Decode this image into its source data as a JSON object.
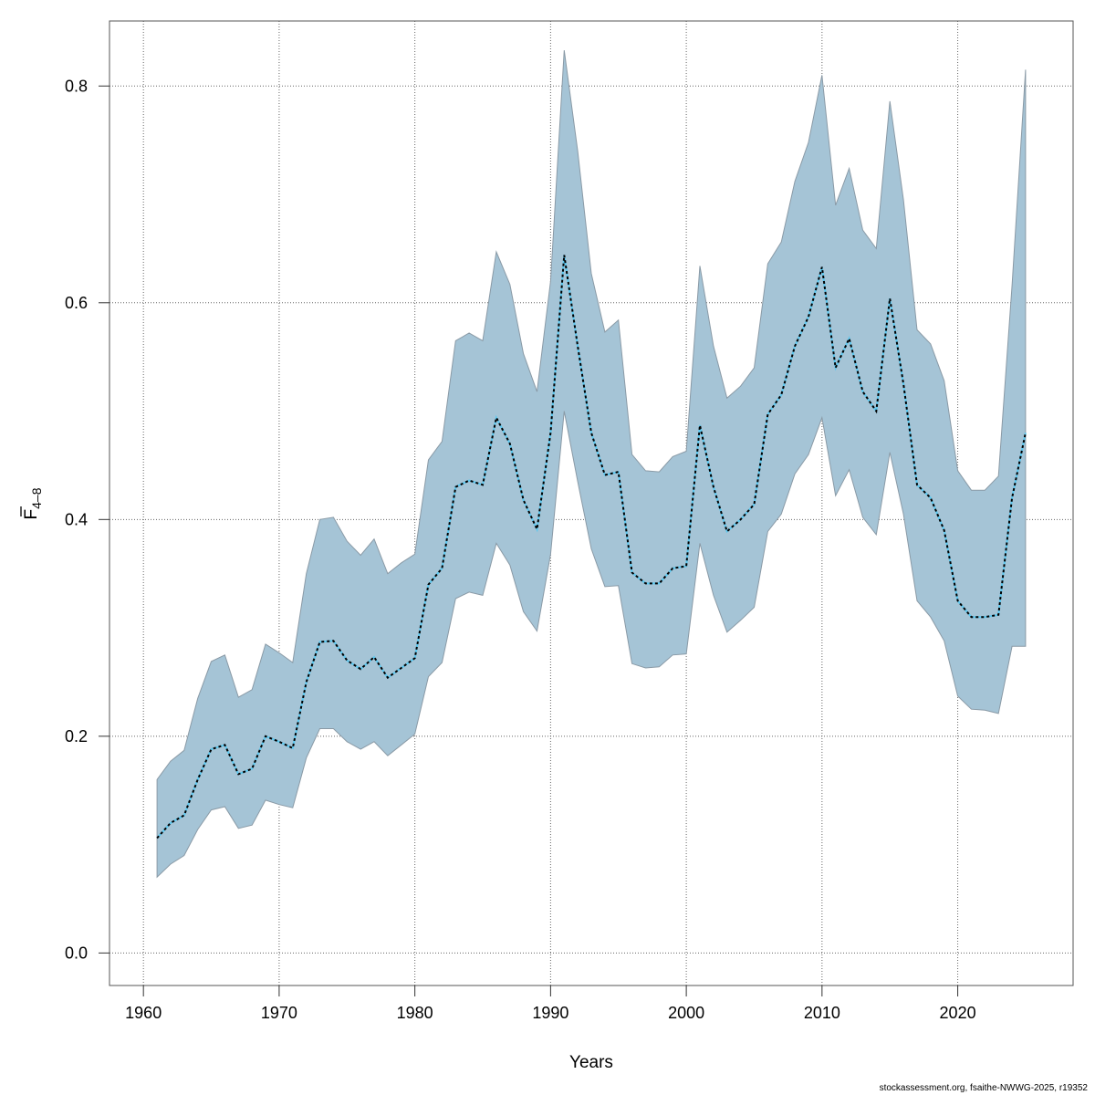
{
  "chart_data": {
    "type": "area",
    "title": "",
    "xlabel": "Years",
    "ylabel_main": "F",
    "ylabel_sub": "4-8",
    "ylabel_overbar": true,
    "xlim": [
      1957.5,
      2028.5
    ],
    "ylim": [
      -0.03,
      0.86
    ],
    "x_ticks": [
      1960,
      1970,
      1980,
      1990,
      2000,
      2010,
      2020
    ],
    "y_ticks": [
      0.0,
      0.2,
      0.4,
      0.6,
      0.8
    ],
    "y_tick_labels": [
      "0.0",
      "0.2",
      "0.4",
      "0.6",
      "0.8"
    ],
    "grid": true,
    "legend": "none",
    "colors": {
      "band": "#a5c4d6",
      "band_edge": "#8a9aa6",
      "line": "#000000",
      "line_under": "#5bc8f0"
    },
    "x": [
      1961,
      1962,
      1963,
      1964,
      1965,
      1966,
      1967,
      1968,
      1969,
      1970,
      1971,
      1972,
      1973,
      1974,
      1975,
      1976,
      1977,
      1978,
      1979,
      1980,
      1981,
      1982,
      1983,
      1984,
      1985,
      1986,
      1987,
      1988,
      1989,
      1990,
      1991,
      1992,
      1993,
      1994,
      1995,
      1996,
      1997,
      1998,
      1999,
      2000,
      2001,
      2002,
      2003,
      2004,
      2005,
      2006,
      2007,
      2008,
      2009,
      2010,
      2011,
      2012,
      2013,
      2014,
      2015,
      2016,
      2017,
      2018,
      2019,
      2020,
      2021,
      2022,
      2023,
      2024,
      2025
    ],
    "series": [
      {
        "name": "F estimate",
        "values": [
          0.106,
          0.12,
          0.127,
          0.16,
          0.188,
          0.192,
          0.165,
          0.17,
          0.2,
          0.195,
          0.189,
          0.25,
          0.287,
          0.288,
          0.27,
          0.262,
          0.273,
          0.254,
          0.263,
          0.272,
          0.34,
          0.355,
          0.43,
          0.436,
          0.432,
          0.494,
          0.47,
          0.418,
          0.391,
          0.48,
          0.644,
          0.56,
          0.48,
          0.441,
          0.444,
          0.351,
          0.341,
          0.341,
          0.355,
          0.357,
          0.487,
          0.43,
          0.389,
          0.4,
          0.414,
          0.497,
          0.515,
          0.56,
          0.587,
          0.633,
          0.54,
          0.567,
          0.518,
          0.5,
          0.604,
          0.525,
          0.432,
          0.42,
          0.39,
          0.325,
          0.31,
          0.31,
          0.312,
          0.42,
          0.48
        ]
      },
      {
        "name": "Upper bound",
        "values": [
          0.16,
          0.177,
          0.187,
          0.235,
          0.269,
          0.275,
          0.236,
          0.243,
          0.285,
          0.277,
          0.268,
          0.35,
          0.4,
          0.402,
          0.38,
          0.367,
          0.382,
          0.35,
          0.36,
          0.368,
          0.455,
          0.472,
          0.565,
          0.572,
          0.565,
          0.647,
          0.617,
          0.553,
          0.518,
          0.62,
          0.833,
          0.74,
          0.627,
          0.573,
          0.584,
          0.46,
          0.445,
          0.444,
          0.458,
          0.463,
          0.634,
          0.56,
          0.512,
          0.523,
          0.54,
          0.636,
          0.656,
          0.712,
          0.748,
          0.81,
          0.69,
          0.724,
          0.667,
          0.65,
          0.786,
          0.695,
          0.575,
          0.562,
          0.528,
          0.445,
          0.427,
          0.427,
          0.44,
          0.616,
          0.815
        ]
      },
      {
        "name": "Lower bound",
        "values": [
          0.07,
          0.082,
          0.09,
          0.114,
          0.132,
          0.135,
          0.115,
          0.118,
          0.141,
          0.137,
          0.134,
          0.18,
          0.207,
          0.207,
          0.195,
          0.188,
          0.195,
          0.182,
          0.192,
          0.202,
          0.255,
          0.268,
          0.327,
          0.333,
          0.33,
          0.378,
          0.358,
          0.315,
          0.297,
          0.368,
          0.5,
          0.435,
          0.373,
          0.338,
          0.339,
          0.267,
          0.263,
          0.264,
          0.275,
          0.276,
          0.378,
          0.33,
          0.296,
          0.307,
          0.319,
          0.389,
          0.405,
          0.442,
          0.46,
          0.494,
          0.422,
          0.446,
          0.402,
          0.386,
          0.462,
          0.405,
          0.325,
          0.31,
          0.288,
          0.237,
          0.225,
          0.224,
          0.221,
          0.283,
          0.283
        ]
      }
    ]
  },
  "footer": "stockassessment.org, fsaithe-NWWG-2025, r19352"
}
